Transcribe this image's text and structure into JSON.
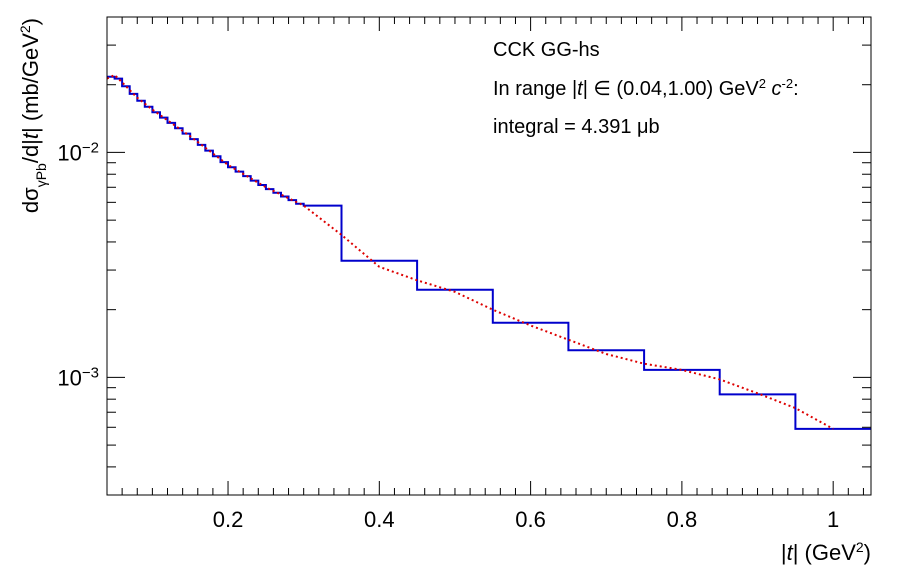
{
  "chart_data": {
    "type": "line",
    "xscale": "linear",
    "yscale": "log",
    "xlim": [
      0.04,
      1.05
    ],
    "ylim": [
      0.0003,
      0.04
    ],
    "grid": false,
    "xlabel": "|t| (GeV²)",
    "ylabel": "dσγPb/d|t| (mb/GeV²)",
    "x_ticks": [
      {
        "value": 0.2,
        "label": "0.2"
      },
      {
        "value": 0.4,
        "label": "0.4"
      },
      {
        "value": 0.6,
        "label": "0.6"
      },
      {
        "value": 0.8,
        "label": "0.8"
      },
      {
        "value": 1.0,
        "label": "1"
      }
    ],
    "y_ticks": [
      {
        "value": 0.01,
        "base": "10",
        "exp": "−2"
      },
      {
        "value": 0.001,
        "base": "10",
        "exp": "−3"
      }
    ],
    "annotations": {
      "line1": "CCK GG-hs",
      "line2": "In range |t| ∈ (0.04,1.00) GeV² c⁻²:",
      "line3": "integral = 4.391 μb"
    },
    "series": [
      {
        "style": "histogram",
        "color": "#0000cc",
        "fine_bins": {
          "x_start": 0.04,
          "x_end": 0.3,
          "bin_width": 0.01,
          "curve_x": [
            0.04,
            0.05,
            0.06,
            0.08,
            0.1,
            0.15,
            0.2,
            0.25,
            0.3
          ],
          "curve_y": [
            0.0213,
            0.0221,
            0.0205,
            0.0175,
            0.0155,
            0.0118,
            0.0088,
            0.007,
            0.0058
          ]
        },
        "coarse_bins": [
          {
            "x0": 0.3,
            "x1": 0.35,
            "y": 0.0058
          },
          {
            "x0": 0.35,
            "x1": 0.45,
            "y": 0.0033
          },
          {
            "x0": 0.45,
            "x1": 0.55,
            "y": 0.00245
          },
          {
            "x0": 0.55,
            "x1": 0.65,
            "y": 0.00175
          },
          {
            "x0": 0.65,
            "x1": 0.75,
            "y": 0.00132
          },
          {
            "x0": 0.75,
            "x1": 0.85,
            "y": 0.00108
          },
          {
            "x0": 0.85,
            "x1": 0.95,
            "y": 0.00084
          },
          {
            "x0": 0.95,
            "x1": 1.05,
            "y": 0.00059
          }
        ]
      },
      {
        "style": "dotted-curve",
        "color": "#dd0000",
        "x": [
          0.04,
          0.05,
          0.06,
          0.08,
          0.1,
          0.15,
          0.2,
          0.25,
          0.3,
          0.35,
          0.4,
          0.45,
          0.5,
          0.55,
          0.6,
          0.65,
          0.7,
          0.75,
          0.8,
          0.85,
          0.9,
          0.95,
          1.0
        ],
        "y": [
          0.0213,
          0.0221,
          0.0205,
          0.0175,
          0.0155,
          0.0118,
          0.0088,
          0.007,
          0.0058,
          0.0043,
          0.0031,
          0.0027,
          0.0024,
          0.002,
          0.0017,
          0.00147,
          0.00127,
          0.00115,
          0.00108,
          0.00098,
          0.00085,
          0.00073,
          0.00059
        ]
      }
    ]
  }
}
